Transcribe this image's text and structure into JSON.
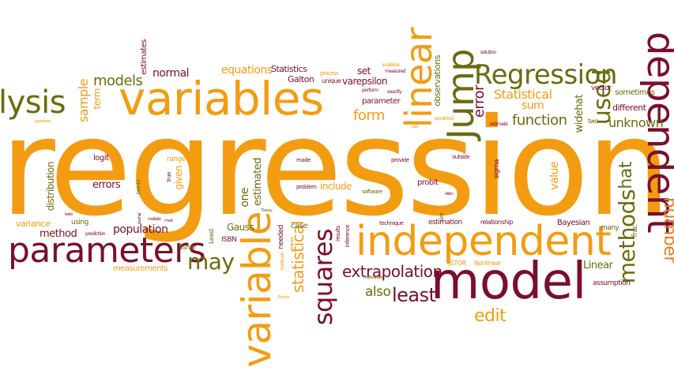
{
  "palette": {
    "orange": "#f39c12",
    "dark_orange": "#e67e22",
    "maroon": "#7b0f2b",
    "olive": "#6b6b0f",
    "gold": "#f1c40f",
    "brown": "#8b4513"
  },
  "words": [
    "regression",
    "variables",
    "independent",
    "model",
    "parameters",
    "variable",
    "linear",
    "Jump",
    "Regression",
    "dependent",
    "lysis",
    "may",
    "squares",
    "methods",
    "used",
    "least",
    "extrapolation",
    "edit",
    "also",
    "number",
    "function",
    "unknown",
    "models",
    "statistical",
    "Statistical",
    "sum",
    "error",
    "form",
    "sample",
    "term",
    "normal",
    "equations",
    "estimates",
    "Statistics",
    "Galton",
    "set",
    "varepsilon",
    "parameter",
    "observations",
    "population",
    "method",
    "distribution",
    "errors",
    "logit",
    "given",
    "range",
    "one",
    "estimated",
    "include",
    "Gauss",
    "case",
    "measurements",
    "variance",
    "using",
    "value",
    "hat",
    "widehat",
    "different",
    "sometimes",
    "vector",
    "Linear",
    "assumption",
    "Bayesian",
    "relationship",
    "estimation",
    "probit",
    "Nonlinear",
    "JSTOR",
    "ISBN",
    "Least",
    "needed",
    "fisher",
    "frac",
    "many",
    "sigma",
    "technique",
    "software",
    "problem",
    "made",
    "provide",
    "outside",
    "true",
    "points",
    "results",
    "inference",
    "two",
    "process",
    "unique",
    "measured",
    "available",
    "exactly",
    "perform",
    "predicted",
    "use",
    "solution",
    "estimate",
    "prediction",
    "multivariate",
    "particular",
    "residuals",
    "Theory",
    "Journal",
    "multiple",
    "Francis",
    "goodness",
    "tests",
    "must",
    "often",
    "size"
  ]
}
